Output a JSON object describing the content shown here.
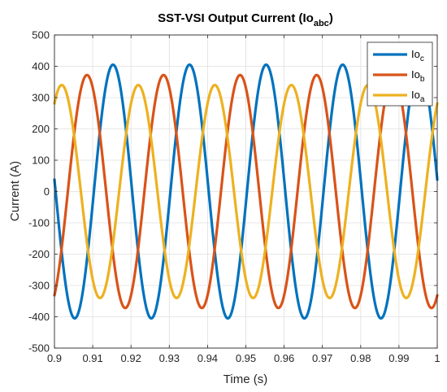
{
  "chart_data": {
    "type": "line",
    "title": {
      "main": "SST-VSI Output Current (Io",
      "sub": "abc",
      "close": ")"
    },
    "xlabel": "Time (s)",
    "ylabel": "Current (A)",
    "xlim": [
      0.9,
      1.0
    ],
    "ylim": [
      -500,
      500
    ],
    "x_ticks": [
      0.9,
      0.91,
      0.92,
      0.93,
      0.94,
      0.95,
      0.96,
      0.97,
      0.98,
      0.99,
      1.0
    ],
    "x_tick_labels": [
      "0.9",
      "0.91",
      "0.92",
      "0.93",
      "0.94",
      "0.95",
      "0.96",
      "0.97",
      "0.98",
      "0.99",
      "1"
    ],
    "y_ticks": [
      -500,
      -400,
      -300,
      -200,
      -100,
      0,
      100,
      200,
      300,
      400,
      500
    ],
    "y_tick_labels": [
      "-500",
      "-400",
      "-300",
      "-200",
      "-100",
      "0",
      "100",
      "200",
      "300",
      "400",
      "500"
    ],
    "grid": true,
    "legend_position": "top-right",
    "frequency_hz": 50,
    "series": [
      {
        "name": "Io",
        "sub": "c",
        "color": "#0072BD",
        "amplitude": 405,
        "first_peak_x": 0.9153
      },
      {
        "name": "Io",
        "sub": "b",
        "color": "#D95319",
        "amplitude": 372,
        "first_peak_x": 0.9085
      },
      {
        "name": "Io",
        "sub": "a",
        "color": "#EDB120",
        "amplitude": 340,
        "first_peak_x": 0.9019
      }
    ]
  }
}
